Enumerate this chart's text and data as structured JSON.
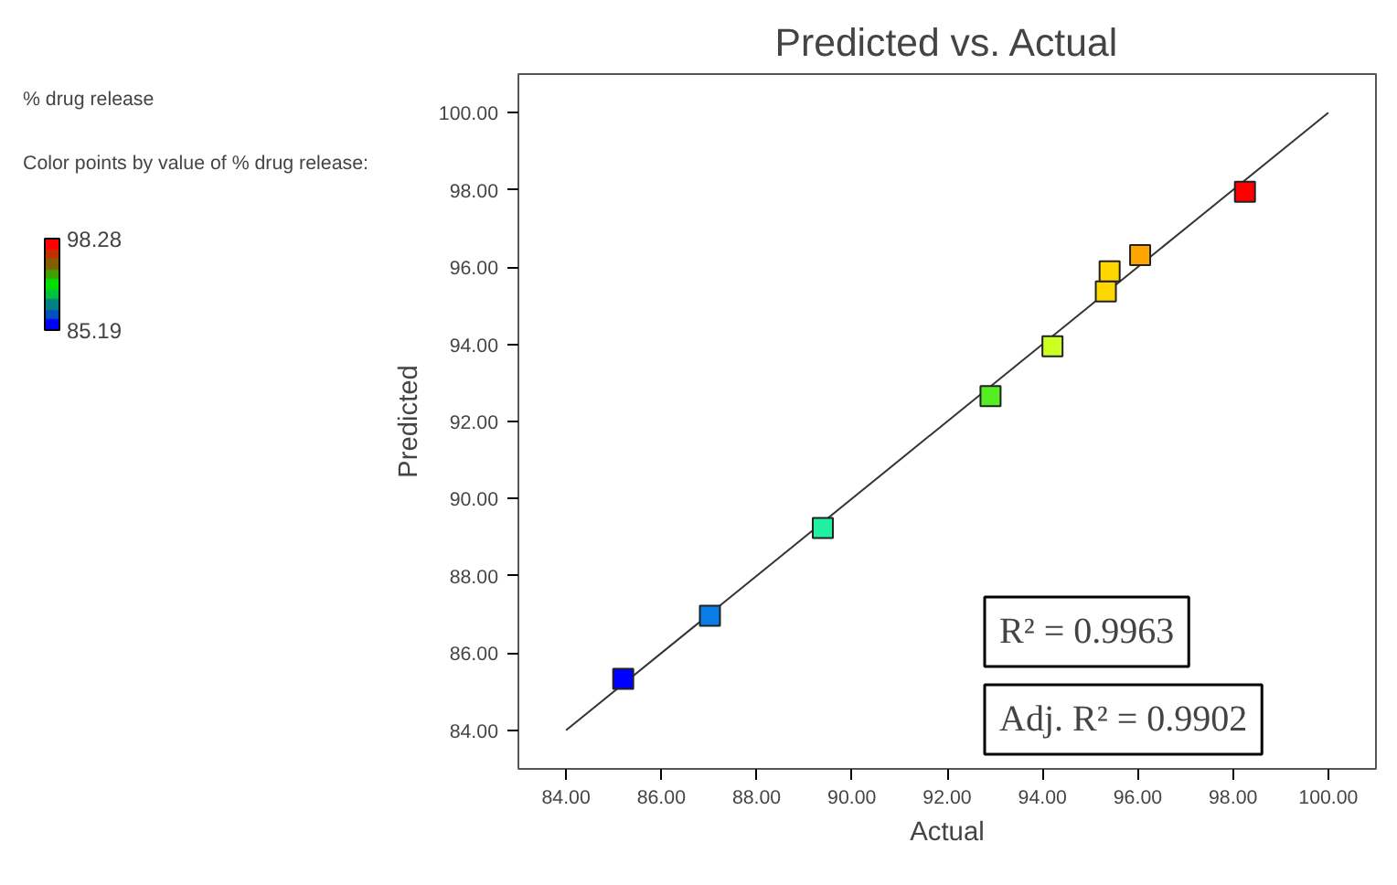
{
  "chart_data": {
    "type": "scatter",
    "title": "Predicted vs. Actual",
    "subtitle": "% drug release",
    "xlabel": "Actual",
    "ylabel": "Predicted",
    "clabel": "Color points by value of % drug release:",
    "clim": [
      85.19,
      98.28
    ],
    "cticks": [
      85.19,
      98.28
    ],
    "xlim": [
      83,
      101
    ],
    "ylim": [
      83,
      101
    ],
    "xticks": [
      {
        "value": 84,
        "label": "84.00"
      },
      {
        "value": 86,
        "label": "86.00"
      },
      {
        "value": 88,
        "label": "88.00"
      },
      {
        "value": 90,
        "label": "90.00"
      },
      {
        "value": 92,
        "label": "92.00"
      },
      {
        "value": 94,
        "label": "94.00"
      },
      {
        "value": 96,
        "label": "96.00"
      },
      {
        "value": 98,
        "label": "98.00"
      },
      {
        "value": 100,
        "label": "100.00"
      }
    ],
    "yticks": [
      {
        "value": 84,
        "label": "84.00"
      },
      {
        "value": 86,
        "label": "86.00"
      },
      {
        "value": 88,
        "label": "88.00"
      },
      {
        "value": 90,
        "label": "90.00"
      },
      {
        "value": 92,
        "label": "92.00"
      },
      {
        "value": 94,
        "label": "94.00"
      },
      {
        "value": 96,
        "label": "96.00"
      },
      {
        "value": 98,
        "label": "98.00"
      },
      {
        "value": 100,
        "label": "100.00"
      }
    ],
    "grid": false,
    "series": [
      {
        "type": "line",
        "color": "#333333",
        "x": [
          84,
          100
        ],
        "values": [
          84,
          100
        ]
      },
      {
        "marker": "square",
        "x": [
          85.2,
          87.02,
          89.39,
          92.91,
          94.21,
          95.33,
          95.41,
          96.05,
          98.25
        ],
        "values": [
          85.33,
          86.97,
          89.24,
          92.66,
          93.95,
          95.37,
          95.89,
          96.31,
          97.95
        ],
        "colors": [
          "#0000ff",
          "#0a7ce6",
          "#20f0a0",
          "#55ee22",
          "#ccff22",
          "#ffd700",
          "#ffd700",
          "#ffa500",
          "#ff0000"
        ]
      }
    ],
    "annotations": [
      "R² = 0.9963",
      "Adj. R² = 0.9902"
    ]
  }
}
